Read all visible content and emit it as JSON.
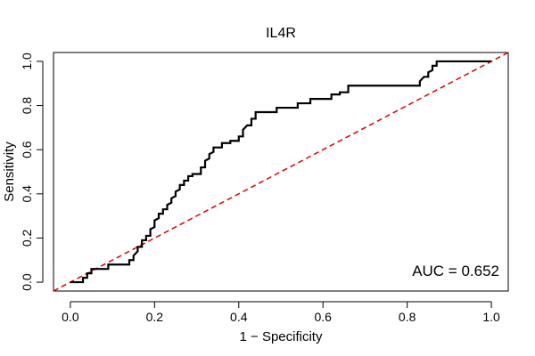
{
  "chart_data": {
    "type": "line",
    "title": "IL4R",
    "xlabel": "1 − Specificity",
    "ylabel": "Sensitivity",
    "xlim": [
      -0.04,
      1.04
    ],
    "ylim": [
      -0.04,
      1.04
    ],
    "x_ticks": [
      0.0,
      0.2,
      0.4,
      0.6,
      0.8,
      1.0
    ],
    "y_ticks": [
      0.0,
      0.2,
      0.4,
      0.6,
      0.8,
      1.0
    ],
    "x_tick_labels": [
      "0.0",
      "0.2",
      "0.4",
      "0.6",
      "0.8",
      "1.0"
    ],
    "y_tick_labels": [
      "0.0",
      "0.2",
      "0.4",
      "0.6",
      "0.8",
      "1.0"
    ],
    "grid": false,
    "annotation": "AUC = 0.652",
    "annotation_position": "bottom-right",
    "colors": {
      "roc": "#000000",
      "reference": "#dd0000"
    },
    "series": [
      {
        "style": "step",
        "points": [
          [
            0.0,
            0.0
          ],
          [
            0.03,
            0.0
          ],
          [
            0.03,
            0.02
          ],
          [
            0.04,
            0.02
          ],
          [
            0.04,
            0.04
          ],
          [
            0.05,
            0.04
          ],
          [
            0.05,
            0.06
          ],
          [
            0.09,
            0.06
          ],
          [
            0.09,
            0.08
          ],
          [
            0.14,
            0.08
          ],
          [
            0.14,
            0.1
          ],
          [
            0.15,
            0.1
          ],
          [
            0.15,
            0.12
          ],
          [
            0.16,
            0.14
          ],
          [
            0.16,
            0.16
          ],
          [
            0.17,
            0.16
          ],
          [
            0.17,
            0.19
          ],
          [
            0.18,
            0.19
          ],
          [
            0.18,
            0.21
          ],
          [
            0.19,
            0.21
          ],
          [
            0.19,
            0.24
          ],
          [
            0.2,
            0.25
          ],
          [
            0.2,
            0.28
          ],
          [
            0.21,
            0.29
          ],
          [
            0.21,
            0.31
          ],
          [
            0.22,
            0.31
          ],
          [
            0.22,
            0.33
          ],
          [
            0.23,
            0.33
          ],
          [
            0.23,
            0.35
          ],
          [
            0.24,
            0.36
          ],
          [
            0.24,
            0.38
          ],
          [
            0.25,
            0.39
          ],
          [
            0.25,
            0.41
          ],
          [
            0.26,
            0.42
          ],
          [
            0.26,
            0.44
          ],
          [
            0.27,
            0.44
          ],
          [
            0.27,
            0.46
          ],
          [
            0.28,
            0.46
          ],
          [
            0.28,
            0.48
          ],
          [
            0.29,
            0.48
          ],
          [
            0.29,
            0.49
          ],
          [
            0.31,
            0.49
          ],
          [
            0.31,
            0.52
          ],
          [
            0.32,
            0.52
          ],
          [
            0.32,
            0.55
          ],
          [
            0.33,
            0.56
          ],
          [
            0.33,
            0.58
          ],
          [
            0.34,
            0.59
          ],
          [
            0.34,
            0.61
          ],
          [
            0.36,
            0.61
          ],
          [
            0.36,
            0.63
          ],
          [
            0.38,
            0.63
          ],
          [
            0.38,
            0.64
          ],
          [
            0.4,
            0.64
          ],
          [
            0.4,
            0.66
          ],
          [
            0.41,
            0.66
          ],
          [
            0.41,
            0.69
          ],
          [
            0.42,
            0.71
          ],
          [
            0.43,
            0.71
          ],
          [
            0.43,
            0.74
          ],
          [
            0.44,
            0.74
          ],
          [
            0.44,
            0.77
          ],
          [
            0.49,
            0.77
          ],
          [
            0.49,
            0.79
          ],
          [
            0.54,
            0.79
          ],
          [
            0.54,
            0.81
          ],
          [
            0.57,
            0.81
          ],
          [
            0.57,
            0.83
          ],
          [
            0.62,
            0.83
          ],
          [
            0.62,
            0.85
          ],
          [
            0.64,
            0.85
          ],
          [
            0.64,
            0.86
          ],
          [
            0.66,
            0.86
          ],
          [
            0.66,
            0.89
          ],
          [
            0.83,
            0.89
          ],
          [
            0.83,
            0.91
          ],
          [
            0.84,
            0.93
          ],
          [
            0.85,
            0.93
          ],
          [
            0.85,
            0.95
          ],
          [
            0.86,
            0.96
          ],
          [
            0.86,
            0.98
          ],
          [
            0.87,
            0.98
          ],
          [
            0.87,
            1.0
          ],
          [
            1.0,
            1.0
          ]
        ]
      }
    ],
    "reference_line": {
      "style": "dashed",
      "from": [
        -0.04,
        -0.04
      ],
      "to": [
        1.04,
        1.04
      ]
    }
  }
}
